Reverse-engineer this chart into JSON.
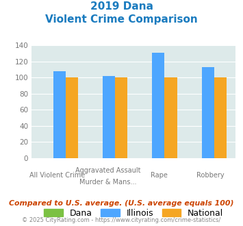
{
  "title_line1": "2019 Dana",
  "title_line2": "Violent Crime Comparison",
  "categories_top": [
    "",
    "Aggravated Assault",
    "",
    ""
  ],
  "categories_bot": [
    "All Violent Crime",
    "Murder & Mans...",
    "Rape",
    "Robbery"
  ],
  "dana_values": [
    0,
    0,
    0,
    0
  ],
  "illinois_values": [
    108,
    102,
    131,
    113
  ],
  "national_values": [
    100,
    100,
    100,
    100
  ],
  "dana_color": "#7bc142",
  "illinois_color": "#4da6ff",
  "national_color": "#f5a623",
  "bg_color": "#ddeaea",
  "title_color": "#1a7bbf",
  "tick_color": "#777777",
  "footer_color": "#cc4400",
  "copy_color": "#888888",
  "ylim": [
    0,
    140
  ],
  "yticks": [
    0,
    20,
    40,
    60,
    80,
    100,
    120,
    140
  ],
  "bar_width": 0.25,
  "footer_text": "Compared to U.S. average. (U.S. average equals 100)",
  "copyright_text": "© 2025 CityRating.com - https://www.cityrating.com/crime-statistics/"
}
